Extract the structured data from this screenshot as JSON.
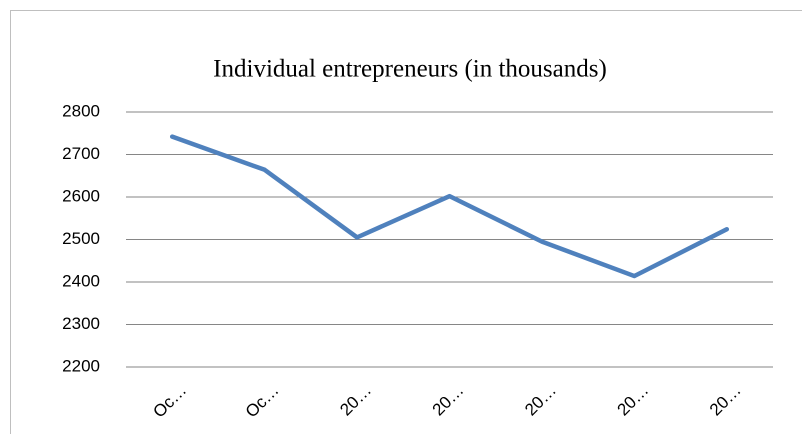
{
  "chart_data": {
    "type": "line",
    "title": "Individual entrepreneurs (in thousands)",
    "categories": [
      "Oc…",
      "Oc…",
      "20…",
      "20…",
      "20…",
      "20…",
      "20…"
    ],
    "series": [
      {
        "name": "Individual entrepreneurs",
        "color": "#4f81bd",
        "values": [
          2742,
          2664,
          2505,
          2602,
          2495,
          2414,
          2524
        ]
      }
    ],
    "ylim": [
      2200,
      2800
    ],
    "yticks": [
      2200,
      2300,
      2400,
      2500,
      2600,
      2700,
      2800
    ],
    "grid": true
  }
}
